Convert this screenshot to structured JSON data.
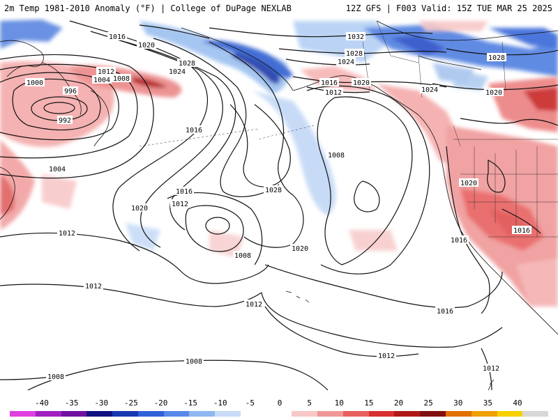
{
  "header": {
    "left_title": "2m Temp 1981-2010 Anomaly (°F) | College of DuPage NEXLAB",
    "right_title": "12Z GFS | F003 Valid: 15Z TUE MAR 25 2025"
  },
  "map": {
    "contour_labels": [
      {
        "id": "l1016-nw",
        "text": "1016"
      },
      {
        "id": "l1020-nw",
        "text": "1020"
      },
      {
        "id": "l1012-a",
        "text": "1012"
      },
      {
        "id": "l1008-a",
        "text": "1008"
      },
      {
        "id": "l1024-a",
        "text": "1024"
      },
      {
        "id": "l1028-a",
        "text": "1028"
      },
      {
        "id": "l1004-a",
        "text": "1004"
      },
      {
        "id": "l1000",
        "text": "1000"
      },
      {
        "id": "l996",
        "text": "996"
      },
      {
        "id": "l992",
        "text": "992"
      },
      {
        "id": "l1016-b",
        "text": "1016"
      },
      {
        "id": "l1004-w",
        "text": "1004"
      },
      {
        "id": "l1020-c",
        "text": "1020"
      },
      {
        "id": "l1016-c",
        "text": "1016"
      },
      {
        "id": "l1012-c",
        "text": "1012"
      },
      {
        "id": "l1012-w",
        "text": "1012"
      },
      {
        "id": "l1008-c",
        "text": "1008"
      },
      {
        "id": "l1012-sw",
        "text": "1012"
      },
      {
        "id": "l1012-s",
        "text": "1012"
      },
      {
        "id": "l1020-d",
        "text": "1020"
      },
      {
        "id": "l1028-c",
        "text": "1028"
      },
      {
        "id": "l1008-e",
        "text": "1008"
      },
      {
        "id": "l1032",
        "text": "1032"
      },
      {
        "id": "l1028-n",
        "text": "1028"
      },
      {
        "id": "l1024-n",
        "text": "1024"
      },
      {
        "id": "l1016-n",
        "text": "1016"
      },
      {
        "id": "l1012-n",
        "text": "1012"
      },
      {
        "id": "l1020-n",
        "text": "1020"
      },
      {
        "id": "l1028-ne",
        "text": "1028"
      },
      {
        "id": "l1024-ne",
        "text": "1024"
      },
      {
        "id": "l1020-ne",
        "text": "1020"
      },
      {
        "id": "l1020-us",
        "text": "1020"
      },
      {
        "id": "l1016-us",
        "text": "1016"
      },
      {
        "id": "l1016-e",
        "text": "1016"
      },
      {
        "id": "l1016-se",
        "text": "1016"
      },
      {
        "id": "l1012-se",
        "text": "1012"
      },
      {
        "id": "l1012-far",
        "text": "1012"
      },
      {
        "id": "l1008-s",
        "text": "1008"
      },
      {
        "id": "l1008-sw",
        "text": "1008"
      }
    ]
  },
  "colorbar": {
    "ticks": [
      "-40",
      "-35",
      "-30",
      "-25",
      "-20",
      "-15",
      "-10",
      "-5",
      "0",
      "5",
      "10",
      "15",
      "20",
      "25",
      "30",
      "35",
      "40"
    ],
    "colors": [
      "#e040e0",
      "#a020c0",
      "#7010a0",
      "#101080",
      "#1838b0",
      "#3060d8",
      "#5888e8",
      "#90b8f0",
      "#c8dcf8",
      "#ffffff",
      "#ffffff",
      "#f8c8c8",
      "#f09898",
      "#e86060",
      "#d83030",
      "#b01818",
      "#801010",
      "#e07000",
      "#f0a000",
      "#f8d000",
      "#d8d8d8"
    ]
  }
}
